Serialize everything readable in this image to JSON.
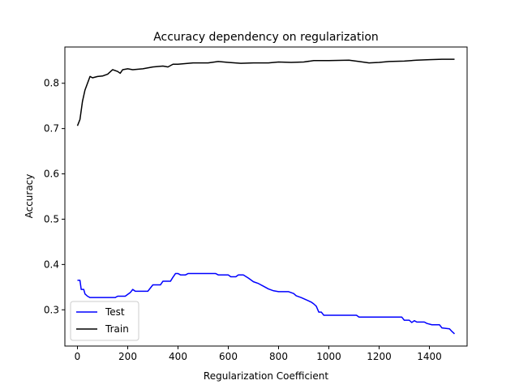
{
  "chart_data": {
    "type": "line",
    "title": "Accuracy dependency on regularization",
    "xlabel": "Regularization Coefficient",
    "ylabel": "Accuracy",
    "xlim": [
      -50,
      1550
    ],
    "ylim": [
      0.22,
      0.88
    ],
    "xticks": [
      0,
      200,
      400,
      600,
      800,
      1000,
      1200,
      1400
    ],
    "yticks": [
      0.3,
      0.4,
      0.5,
      0.6,
      0.7,
      0.8
    ],
    "xtick_labels": [
      "0",
      "200",
      "400",
      "600",
      "800",
      "1000",
      "1200",
      "1400"
    ],
    "ytick_labels": [
      "0.3",
      "0.4",
      "0.5",
      "0.6",
      "0.7",
      "0.8"
    ],
    "grid": false,
    "legend_position": "lower-left",
    "series": [
      {
        "name": "Test",
        "color": "#0000ff",
        "points": [
          [
            0,
            0.365
          ],
          [
            10,
            0.365
          ],
          [
            15,
            0.345
          ],
          [
            25,
            0.345
          ],
          [
            30,
            0.335
          ],
          [
            40,
            0.33
          ],
          [
            50,
            0.327
          ],
          [
            150,
            0.327
          ],
          [
            160,
            0.33
          ],
          [
            190,
            0.33
          ],
          [
            210,
            0.338
          ],
          [
            220,
            0.345
          ],
          [
            230,
            0.341
          ],
          [
            280,
            0.341
          ],
          [
            300,
            0.355
          ],
          [
            330,
            0.355
          ],
          [
            340,
            0.363
          ],
          [
            370,
            0.363
          ],
          [
            380,
            0.372
          ],
          [
            390,
            0.38
          ],
          [
            400,
            0.38
          ],
          [
            410,
            0.377
          ],
          [
            430,
            0.377
          ],
          [
            440,
            0.38
          ],
          [
            550,
            0.38
          ],
          [
            560,
            0.377
          ],
          [
            600,
            0.377
          ],
          [
            610,
            0.373
          ],
          [
            630,
            0.373
          ],
          [
            640,
            0.377
          ],
          [
            660,
            0.377
          ],
          [
            680,
            0.37
          ],
          [
            700,
            0.362
          ],
          [
            720,
            0.358
          ],
          [
            740,
            0.352
          ],
          [
            760,
            0.346
          ],
          [
            780,
            0.342
          ],
          [
            800,
            0.34
          ],
          [
            840,
            0.34
          ],
          [
            860,
            0.336
          ],
          [
            870,
            0.331
          ],
          [
            890,
            0.327
          ],
          [
            910,
            0.322
          ],
          [
            930,
            0.317
          ],
          [
            940,
            0.313
          ],
          [
            950,
            0.308
          ],
          [
            960,
            0.295
          ],
          [
            970,
            0.295
          ],
          [
            980,
            0.288
          ],
          [
            1110,
            0.288
          ],
          [
            1120,
            0.284
          ],
          [
            1290,
            0.284
          ],
          [
            1300,
            0.277
          ],
          [
            1320,
            0.277
          ],
          [
            1330,
            0.272
          ],
          [
            1340,
            0.276
          ],
          [
            1350,
            0.273
          ],
          [
            1380,
            0.273
          ],
          [
            1390,
            0.27
          ],
          [
            1410,
            0.267
          ],
          [
            1440,
            0.267
          ],
          [
            1450,
            0.26
          ],
          [
            1480,
            0.258
          ],
          [
            1490,
            0.252
          ],
          [
            1500,
            0.247
          ]
        ]
      },
      {
        "name": "Train",
        "color": "#000000",
        "points": [
          [
            0,
            0.706
          ],
          [
            10,
            0.72
          ],
          [
            20,
            0.76
          ],
          [
            30,
            0.785
          ],
          [
            40,
            0.8
          ],
          [
            50,
            0.815
          ],
          [
            60,
            0.812
          ],
          [
            80,
            0.815
          ],
          [
            100,
            0.816
          ],
          [
            120,
            0.82
          ],
          [
            140,
            0.83
          ],
          [
            160,
            0.826
          ],
          [
            170,
            0.822
          ],
          [
            180,
            0.83
          ],
          [
            200,
            0.832
          ],
          [
            220,
            0.83
          ],
          [
            260,
            0.832
          ],
          [
            300,
            0.836
          ],
          [
            340,
            0.838
          ],
          [
            360,
            0.836
          ],
          [
            380,
            0.842
          ],
          [
            400,
            0.842
          ],
          [
            460,
            0.845
          ],
          [
            520,
            0.845
          ],
          [
            560,
            0.848
          ],
          [
            600,
            0.846
          ],
          [
            650,
            0.844
          ],
          [
            700,
            0.845
          ],
          [
            760,
            0.845
          ],
          [
            800,
            0.847
          ],
          [
            850,
            0.846
          ],
          [
            900,
            0.847
          ],
          [
            940,
            0.85
          ],
          [
            1000,
            0.85
          ],
          [
            1080,
            0.851
          ],
          [
            1120,
            0.848
          ],
          [
            1160,
            0.845
          ],
          [
            1200,
            0.846
          ],
          [
            1240,
            0.848
          ],
          [
            1300,
            0.849
          ],
          [
            1350,
            0.851
          ],
          [
            1400,
            0.852
          ],
          [
            1450,
            0.853
          ],
          [
            1500,
            0.853
          ]
        ]
      }
    ]
  }
}
